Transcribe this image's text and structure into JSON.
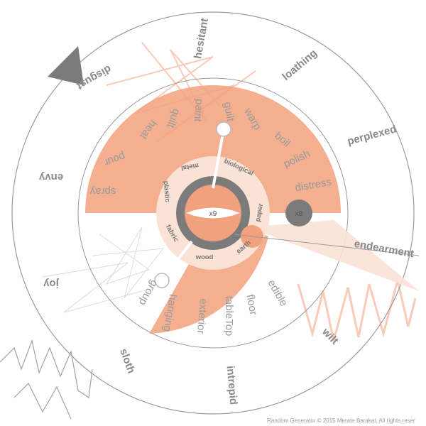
{
  "emotions": [
    "hesitant",
    "loathing",
    "perplexed",
    "endearment",
    "wilt",
    "intrepid",
    "sloth",
    "joy",
    "envy",
    "disgust"
  ],
  "verbs_top": [
    "spray",
    "pour",
    "heat",
    "quilt",
    "paint",
    "guilt",
    "warp",
    "boil",
    "polish",
    "distress"
  ],
  "verbs_bottom": [
    "edible",
    "floor",
    "tableTop",
    "exterior",
    "hanging",
    "group"
  ],
  "materials": [
    "plastic",
    "metal",
    "biological",
    "paper",
    "earth",
    "wood",
    "fabric"
  ],
  "center": {
    "label": "x9"
  },
  "badge": {
    "label": "x8"
  },
  "footer": {
    "credit": "Random Generator © 2015 Merate Barakat. All rights reser"
  },
  "colors": {
    "accent": "#f2a17e",
    "accent_light": "#fbe2d6",
    "ring": "#7b7b7b",
    "line": "#9a9a9a",
    "text": "#8a8a8a"
  }
}
